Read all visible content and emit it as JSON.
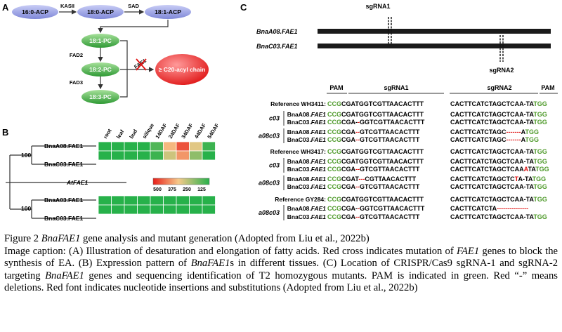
{
  "panelA": {
    "label": "A",
    "acp": [
      "16:0-ACP",
      "18:0-ACP",
      "18:1-ACP"
    ],
    "enzymes_top": [
      "KASII",
      "SAD"
    ],
    "pc": [
      "18:1-PC",
      "18:2-PC",
      "18:3-PC"
    ],
    "enzymes_side": [
      "FAD2",
      "FAD3"
    ],
    "fae": "FAE1",
    "product": "≥ C20-acyl chain"
  },
  "panelB": {
    "label": "B",
    "tissues": [
      "root",
      "leaf",
      "bud",
      "silique",
      "14DAF",
      "24DAF",
      "34DAF",
      "44DAF",
      "54DAF"
    ],
    "genes_top": [
      "BnaA08.FAE1",
      "BnaC03.FAE1"
    ],
    "outgroup": "AtFAE1",
    "genes_bottom": [
      "BnaA03.FAE1",
      "BnaC03.FAE1"
    ],
    "bootstrap": [
      "100",
      "100"
    ],
    "scale_labels": [
      "500",
      "375",
      "250",
      "125"
    ],
    "colors": {
      "high": "#e8201a",
      "mid": "#f6c98a",
      "low": "#27b14a"
    },
    "heatmap_top_levels": [
      [
        0,
        0,
        0,
        0,
        0.1,
        0.55,
        0.85,
        0.45,
        0.05
      ],
      [
        0,
        0,
        0,
        0,
        0.05,
        0.4,
        0.65,
        0.25,
        0
      ]
    ],
    "heatmap_bottom_levels": [
      [
        0,
        0,
        0,
        0,
        0,
        0,
        0,
        0,
        0
      ],
      [
        0,
        0,
        0,
        0,
        0,
        0,
        0,
        0,
        0
      ]
    ]
  },
  "panelC": {
    "label": "C",
    "sgrna1": "sgRNA1",
    "sgrna2": "sgRNA2",
    "genes": [
      "BnaA08.FAE1",
      "BnaC03.FAE1"
    ],
    "headers": {
      "pam1": "PAM",
      "sg1": "sgRNA1",
      "sg2": "sgRNA2",
      "pam2": "PAM"
    },
    "rows": [
      {
        "group": "",
        "name": "Reference WH3411:",
        "s1": [
          [
            "CCG",
            "g"
          ],
          [
            "CGATGGTCGTTAACACTTT",
            "k"
          ]
        ],
        "s2": [
          [
            "CACTTCATCTAGCTCAA-TA",
            "k"
          ],
          [
            "TGG",
            "g"
          ]
        ]
      },
      {
        "group": "c03",
        "name": "BnaA08.FAE1",
        "s1": [
          [
            "CCG",
            "g"
          ],
          [
            "CGATGGTCGTTAACACTTT",
            "k"
          ]
        ],
        "s2": [
          [
            "CACTTCATCTAGCTCAA-TA",
            "k"
          ],
          [
            "TGG",
            "g"
          ]
        ]
      },
      {
        "group": "",
        "name": "BnaC03.FAE1",
        "s1": [
          [
            "CCG",
            "g"
          ],
          [
            "CGA-",
            "k"
          ],
          [
            "-",
            "r"
          ],
          [
            "GGTCGTTAACACTTT",
            "k"
          ]
        ],
        "s2": [
          [
            "CACTTCATCTAGCTCAA-TA",
            "k"
          ],
          [
            "TGG",
            "g"
          ]
        ]
      },
      {
        "group": "a08c03",
        "name": "BnaA08.FAE1",
        "s1": [
          [
            "CCG",
            "g"
          ],
          [
            "CGA",
            "k"
          ],
          [
            "--",
            "r"
          ],
          [
            "GTCGTTAACACTTT",
            "k"
          ]
        ],
        "s2": [
          [
            "CACTTCATCTAGC",
            "k"
          ],
          [
            "-------",
            "r"
          ],
          [
            "A",
            "k"
          ],
          [
            "TGG",
            "g"
          ]
        ]
      },
      {
        "group": "",
        "name": "BnaC03.FAE1",
        "s1": [
          [
            "CCG",
            "g"
          ],
          [
            "CGA",
            "k"
          ],
          [
            "--",
            "r"
          ],
          [
            "GTCGTTAACACTTT",
            "k"
          ]
        ],
        "s2": [
          [
            "CACTTCATCTAGC",
            "k"
          ],
          [
            "-------",
            "r"
          ],
          [
            "A",
            "k"
          ],
          [
            "TGG",
            "g"
          ]
        ]
      },
      {
        "group": "",
        "name": "Reference WH3417:",
        "s1": [
          [
            "CCG",
            "g"
          ],
          [
            "CGATGGTCGTTAACACTTT",
            "k"
          ]
        ],
        "s2": [
          [
            "CACTTCATCTAGCTCAA-TA",
            "k"
          ],
          [
            "TGG",
            "g"
          ]
        ]
      },
      {
        "group": "c03",
        "name": "BnaA08.FAE1",
        "s1": [
          [
            "CCG",
            "g"
          ],
          [
            "CGATGGTCGTTAACACTTT",
            "k"
          ]
        ],
        "s2": [
          [
            "CACTTCATCTAGCTCAA-TA",
            "k"
          ],
          [
            "TGG",
            "g"
          ]
        ]
      },
      {
        "group": "",
        "name": "BnaC03.FAE1",
        "s1": [
          [
            "CCG",
            "g"
          ],
          [
            "CGA",
            "k"
          ],
          [
            "--",
            "r"
          ],
          [
            "GTCGTTAACACTTT",
            "k"
          ]
        ],
        "s2": [
          [
            "CACTTCATCTAGCTCAA",
            "k"
          ],
          [
            "A",
            "r"
          ],
          [
            "TA",
            "k"
          ],
          [
            "TGG",
            "g"
          ]
        ]
      },
      {
        "group": "a08c03",
        "name": "BnaA08.FAE1",
        "s1": [
          [
            "CCG",
            "g"
          ],
          [
            "CGAT",
            "k"
          ],
          [
            "---",
            "r"
          ],
          [
            "CGTTAACACTTT",
            "k"
          ]
        ],
        "s2": [
          [
            "CACTTCATCTAGCTC",
            "k"
          ],
          [
            "T",
            "r"
          ],
          [
            "A-TA",
            "k"
          ],
          [
            "TGG",
            "g"
          ]
        ]
      },
      {
        "group": "",
        "name": "BnaC03.FAE1",
        "s1": [
          [
            "CCG",
            "g"
          ],
          [
            "CGA",
            "k"
          ],
          [
            "--",
            "r"
          ],
          [
            "GTCGTTAACACTTT",
            "k"
          ]
        ],
        "s2": [
          [
            "CACTTCATCTAGCTCAA-TA",
            "k"
          ],
          [
            "TGG",
            "g"
          ]
        ]
      },
      {
        "group": "",
        "name": "Reference GY284:",
        "s1": [
          [
            "CCG",
            "g"
          ],
          [
            "CGATGGTCGTTAACACTTT",
            "k"
          ]
        ],
        "s2": [
          [
            "CACTTCATCTAGCTCAA-TA",
            "k"
          ],
          [
            "TGG",
            "g"
          ]
        ]
      },
      {
        "group": "a08c03",
        "name": "BnaA08.FAE1",
        "s1": [
          [
            "CCG",
            "g"
          ],
          [
            "CGA-",
            "k"
          ],
          [
            "-",
            "r"
          ],
          [
            "GGTCGTTAACACTTT",
            "k"
          ]
        ],
        "s2": [
          [
            "CACTTCATCTA",
            "k"
          ],
          [
            "---------------",
            "r"
          ]
        ]
      },
      {
        "group": "",
        "name": "BnaC03.FAE1",
        "s1": [
          [
            "CCG",
            "g"
          ],
          [
            "CGA",
            "k"
          ],
          [
            "--",
            "r"
          ],
          [
            "GTCGTTAACACTTT",
            "k"
          ]
        ],
        "s2": [
          [
            "CACTTCATCTAGCTCAA-TA",
            "k"
          ],
          [
            "TGG",
            "g"
          ]
        ]
      }
    ],
    "seq_colors": {
      "g": "#4e9a2a",
      "k": "#000000",
      "r": "#e01010"
    }
  },
  "caption": {
    "title_prefix": "Figure 2 ",
    "title_italic": "BnaFAE1",
    "title_rest": " gene analysis and mutant generation (Adopted from Liu et al., 2022b)",
    "body": [
      {
        "t": "Image caption: (A) Illustration of desaturation and elongation of fatty acids. Red cross indicates mutation of ",
        "i": false
      },
      {
        "t": "FAE1",
        "i": true
      },
      {
        "t": " genes to block the synthesis of EA. (B) Expression pattern of ",
        "i": false
      },
      {
        "t": "BnaFAE1",
        "i": true
      },
      {
        "t": "s in different tissues. (C) Location of CRISPR/Cas9 sgRNA-1 and sgRNA-2 targeting ",
        "i": false
      },
      {
        "t": "BnaFAE1",
        "i": true
      },
      {
        "t": " genes and sequencing identification of T2 homozygous mutants. PAM is indicated in green. Red “-” means deletions. Red font indicates nucleotide insertions and substitutions (Adopted from Liu et al., 2022b)",
        "i": false
      }
    ]
  }
}
